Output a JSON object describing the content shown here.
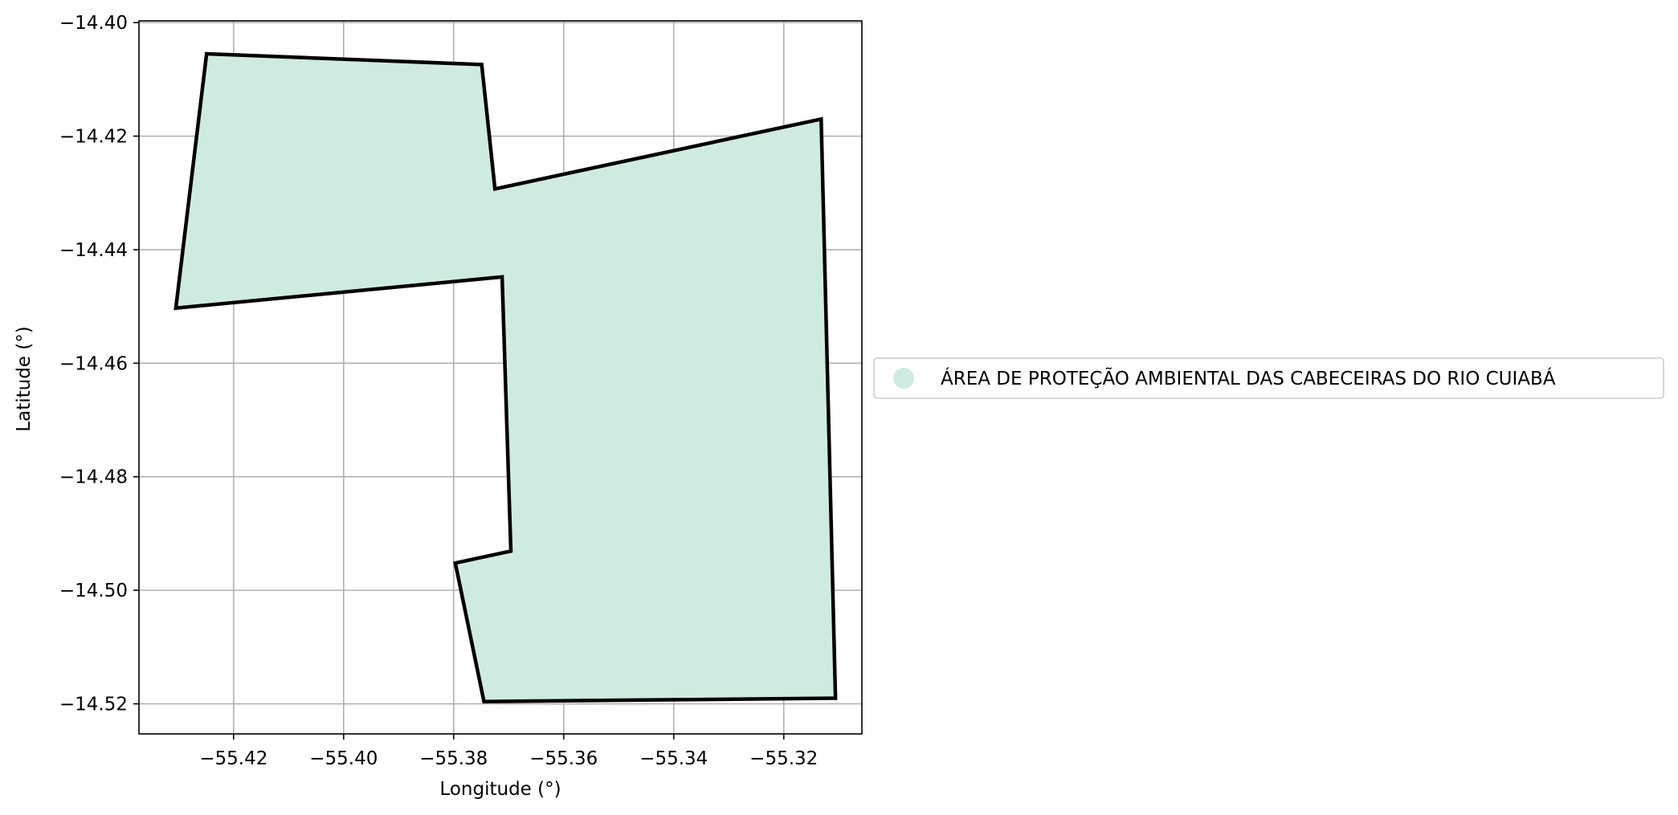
{
  "chart_data": {
    "type": "map",
    "xlabel": "Longitude (°)",
    "ylabel": "Latitude (°)",
    "xlim": [
      -55.4372,
      -55.3058
    ],
    "ylim": [
      -14.5253,
      -14.3997
    ],
    "xticks": [
      -55.42,
      -55.4,
      -55.38,
      -55.36,
      -55.34,
      -55.32
    ],
    "xtick_labels": [
      "−55.42",
      "−55.40",
      "−55.38",
      "−55.36",
      "−55.34",
      "−55.32"
    ],
    "yticks": [
      -14.4,
      -14.42,
      -14.44,
      -14.46,
      -14.48,
      -14.5,
      -14.52
    ],
    "ytick_labels": [
      "−14.40",
      "−14.42",
      "−14.44",
      "−14.46",
      "−14.48",
      "−14.50",
      "−14.52"
    ],
    "grid": true,
    "legend_position": "center-left outside the plot",
    "series": [
      {
        "name": "ÁREA DE PROTEÇÃO AMBIENTAL DAS CABECEIRAS DO RIO CUIABÁ",
        "fill_color": "#cfebdf",
        "edge_color": "#000000",
        "polygon": [
          [
            -55.4249,
            -14.4055
          ],
          [
            -55.3749,
            -14.4074
          ],
          [
            -55.3725,
            -14.4293
          ],
          [
            -55.3132,
            -14.417
          ],
          [
            -55.3106,
            -14.519
          ],
          [
            -55.3745,
            -14.5196
          ],
          [
            -55.3797,
            -14.4952
          ],
          [
            -55.3696,
            -14.4931
          ],
          [
            -55.3712,
            -14.4448
          ],
          [
            -55.4305,
            -14.4503
          ]
        ]
      }
    ]
  }
}
